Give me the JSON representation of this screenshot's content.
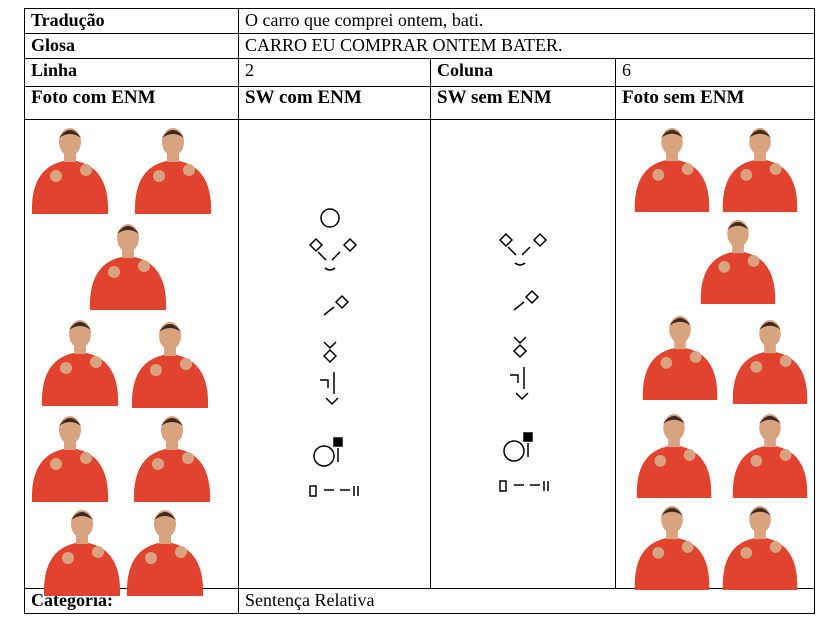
{
  "translation": {
    "label": "Tradução",
    "text": "O carro que comprei ontem, bati."
  },
  "gloss": {
    "label": "Glosa",
    "text": "CARRO EU COMPRAR ONTEM BATER."
  },
  "position": {
    "line_label": "Linha",
    "line": 2,
    "column_label": "Coluna",
    "column": 6
  },
  "headers": [
    "Foto com ENM",
    "SW com ENM",
    "SW sem ENM",
    "Foto sem ENM"
  ],
  "category": {
    "label": "Categoria:",
    "text": "Sentença Relativa"
  }
}
